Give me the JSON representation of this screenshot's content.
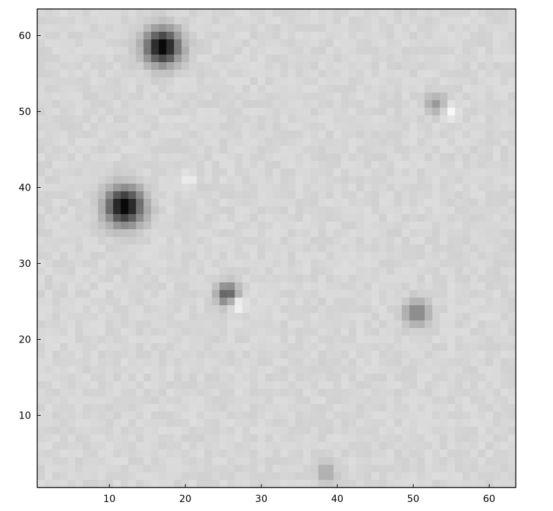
{
  "chart_data": {
    "type": "heatmap",
    "title": "",
    "xlabel": "",
    "ylabel": "",
    "xlim": [
      0.5,
      63.5
    ],
    "ylim": [
      0.5,
      63.5
    ],
    "xticks": [
      10,
      20,
      30,
      40,
      50,
      60
    ],
    "yticks": [
      10,
      20,
      30,
      40,
      50,
      60
    ],
    "grid": false,
    "colormap": "gray",
    "background_level": 0.84,
    "sources": [
      {
        "x": 17.0,
        "y": 58.5,
        "peak": 0.0,
        "sigma": 1.6
      },
      {
        "x": 12.0,
        "y": 37.5,
        "peak": 0.0,
        "sigma": 1.7
      },
      {
        "x": 25.5,
        "y": 26.0,
        "peak": 0.35,
        "sigma": 1.0
      },
      {
        "x": 50.5,
        "y": 23.5,
        "peak": 0.5,
        "sigma": 1.2
      },
      {
        "x": 53.0,
        "y": 51.0,
        "peak": 0.6,
        "sigma": 0.9
      },
      {
        "x": 38.5,
        "y": 2.5,
        "peak": 0.65,
        "sigma": 0.9
      }
    ],
    "bright_residuals": [
      {
        "x": 27.0,
        "y": 24.5,
        "peak": 0.97,
        "sigma": 0.7
      },
      {
        "x": 55.0,
        "y": 50.0,
        "peak": 0.97,
        "sigma": 0.7
      },
      {
        "x": 20.5,
        "y": 41.0,
        "peak": 0.95,
        "sigma": 0.6
      }
    ]
  }
}
